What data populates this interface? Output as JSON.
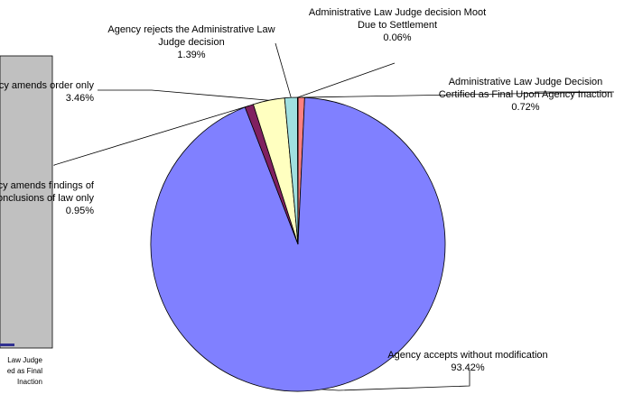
{
  "chart_data": {
    "type": "pie",
    "title": "",
    "start_angle_deg": 0,
    "direction": "clockwise",
    "slices": [
      {
        "lines": [
          "Administrative Law Judge Decision",
          "Certified as Final Upon Agency Inaction"
        ],
        "pct_text": "0.72%",
        "value": 0.72,
        "color": "#ff8080"
      },
      {
        "lines": [
          "Agency accepts without modification"
        ],
        "pct_text": "93.42%",
        "value": 93.42,
        "color": "#8080ff"
      },
      {
        "lines": [
          "Agency amends findings of",
          "facts/conclusions of law only"
        ],
        "pct_text": "0.95%",
        "value": 0.95,
        "color": "#802060"
      },
      {
        "lines": [
          "Agency amends order only"
        ],
        "pct_text": "3.46%",
        "value": 3.46,
        "color": "#ffffc0"
      },
      {
        "lines": [
          "Agency rejects the Administrative Law",
          "Judge decision"
        ],
        "pct_text": "1.39%",
        "value": 1.39,
        "color": "#a0e0e0"
      },
      {
        "lines": [
          "Administrative Law Judge decision Moot",
          "Due to Settlement"
        ],
        "pct_text": "0.06%",
        "value": 0.06,
        "color": "#600080"
      }
    ],
    "background_panel": {
      "color": "#c0c0c0",
      "label_lines": [
        "Law Judge",
        "ed as Final",
        "Inaction"
      ]
    }
  }
}
